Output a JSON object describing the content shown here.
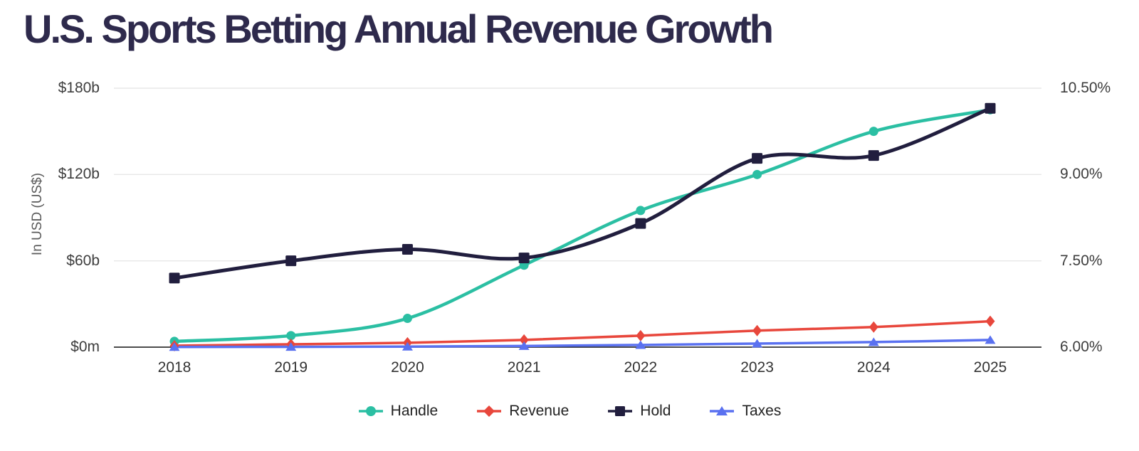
{
  "chart_data": {
    "type": "line",
    "title": "U.S. Sports Betting Annual Revenue Growth",
    "title_color": "#2e2a4c",
    "categories": [
      "2018",
      "2019",
      "2020",
      "2021",
      "2022",
      "2023",
      "2024",
      "2025"
    ],
    "left_axis": {
      "title": "In USD (US$)",
      "ticks": [
        "$180b",
        "$120b",
        "$60b",
        "$0m"
      ],
      "range": [
        0,
        180
      ],
      "unit": "billion USD"
    },
    "right_axis": {
      "ticks": [
        "10.50%",
        "9.00%",
        "7.50%",
        "6.00%"
      ],
      "range": [
        6,
        10.5
      ],
      "unit": "percent"
    },
    "grid": true,
    "legend_position": "bottom",
    "series": [
      {
        "name": "Handle",
        "axis": "left",
        "marker": "circle",
        "color": "#2bbfa3",
        "values": [
          4,
          8,
          20,
          57,
          95,
          120,
          150,
          165
        ]
      },
      {
        "name": "Revenue",
        "axis": "left",
        "marker": "diamond",
        "color": "#e8473c",
        "values": [
          1,
          2,
          3,
          5,
          8,
          11.5,
          14,
          18
        ]
      },
      {
        "name": "Hold",
        "axis": "right",
        "marker": "square",
        "color": "#211e3e",
        "values": [
          7.2,
          7.5,
          7.7,
          7.55,
          8.15,
          9.28,
          9.33,
          10.15
        ]
      },
      {
        "name": "Taxes",
        "axis": "left",
        "marker": "triangle",
        "color": "#5a71f0",
        "values": [
          0.1,
          0.2,
          0.4,
          0.8,
          1.5,
          2.5,
          3.5,
          5
        ]
      }
    ],
    "gridline_color": "#e7e7e7",
    "axis_line_color": "#111111"
  }
}
